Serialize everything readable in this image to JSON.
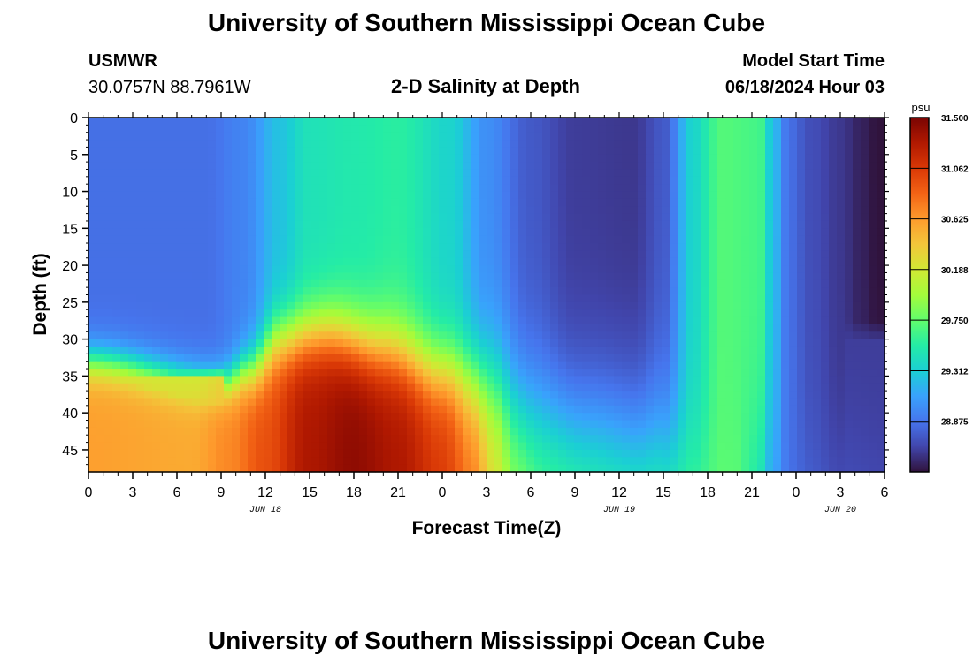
{
  "header": {
    "title": "University of Southern Mississippi Ocean Cube",
    "station": "USMWR",
    "coords": "30.0757N  88.7961W",
    "subtitle": "2-D Salinity at Depth",
    "start_label": "Model Start Time",
    "start_value": "06/18/2024 Hour 03"
  },
  "footer": {
    "title": "University of Southern Mississippi Ocean Cube"
  },
  "chart_data": {
    "type": "heatmap",
    "title": "2-D Salinity at Depth",
    "xlabel": "Forecast Time(Z)",
    "ylabel": "Depth (ft)",
    "x_ticks": [
      "0",
      "3",
      "6",
      "9",
      "12",
      "15",
      "18",
      "21",
      "0",
      "3",
      "6",
      "9",
      "12",
      "15",
      "18",
      "21",
      "0",
      "3",
      "6"
    ],
    "x_range_hours": [
      0,
      54
    ],
    "date_labels": [
      {
        "hour": 12,
        "label": "JUN 18"
      },
      {
        "hour": 36,
        "label": "JUN 19"
      },
      {
        "hour": 51,
        "label": "JUN 20"
      }
    ],
    "y_ticks": [
      "0",
      "5",
      "10",
      "15",
      "20",
      "25",
      "30",
      "35",
      "40",
      "45"
    ],
    "y_range": [
      0,
      48
    ],
    "colorbar": {
      "unit": "psu",
      "min": 28.4375,
      "max": 31.5,
      "ticks": [
        "31.500",
        "31.062",
        "30.625",
        "30.188",
        "29.750",
        "29.312",
        "28.875"
      ],
      "colors": [
        "#30123b",
        "#4145ab",
        "#4675ed",
        "#39a2fc",
        "#1bcfd4",
        "#24eca6",
        "#61fc6c",
        "#a4fc3b",
        "#d1e834",
        "#f3c63a",
        "#fe9b2d",
        "#f36315",
        "#d93806",
        "#b11901",
        "#7a0403"
      ]
    },
    "salinity_summary": [
      {
        "period": "hours 0-9",
        "surface": 28.8,
        "bottom": 30.6
      },
      {
        "period": "hours 12-27",
        "surface": 29.4,
        "bottom": 31.4
      },
      {
        "period": "hours 33-39",
        "surface": 28.6,
        "bottom": 29.6
      },
      {
        "period": "hours 42-46",
        "surface": 29.7,
        "bottom": 29.7
      },
      {
        "period": "hours 50-54",
        "surface": 28.45,
        "bottom": 28.7
      }
    ]
  }
}
